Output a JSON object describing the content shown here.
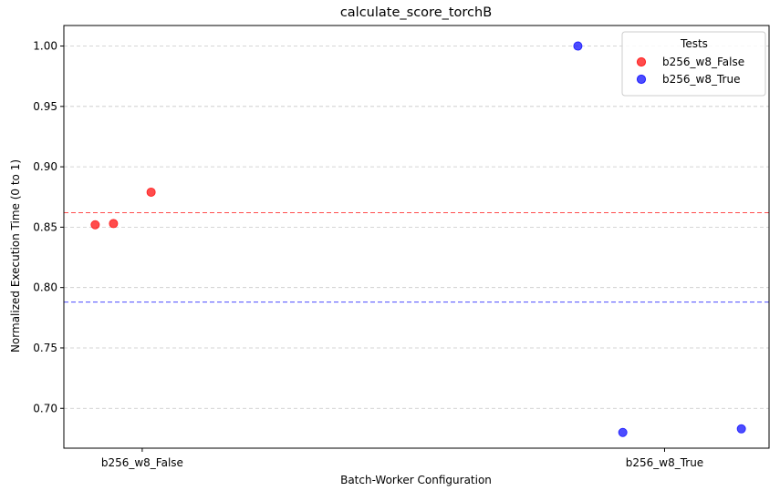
{
  "chart_data": {
    "type": "scatter",
    "title": "calculate_score_torchB",
    "xlabel": "Batch-Worker Configuration",
    "ylabel": "Normalized Execution Time (0 to 1)",
    "categories": [
      "b256_w8_False",
      "b256_w8_True"
    ],
    "xlim": [
      -0.15,
      1.2
    ],
    "ylim": [
      0.667,
      1.017
    ],
    "yticks": [
      0.7,
      0.75,
      0.8,
      0.85,
      0.9,
      0.95,
      1.0
    ],
    "ytick_labels": [
      "0.70",
      "0.75",
      "0.80",
      "0.85",
      "0.90",
      "0.95",
      "1.00"
    ],
    "grid": {
      "axis": "y",
      "style": "dashed"
    },
    "legend": {
      "title": "Tests",
      "placement": "top-right"
    },
    "series": [
      {
        "name": "b256_w8_False",
        "color": "#ff0000",
        "points": [
          {
            "x": -0.09,
            "y": 0.852
          },
          {
            "x": -0.055,
            "y": 0.853
          },
          {
            "x": 0.017,
            "y": 0.879
          }
        ],
        "mean": 0.862
      },
      {
        "name": "b256_w8_True",
        "color": "#0000ff",
        "points": [
          {
            "x": 0.834,
            "y": 1.0
          },
          {
            "x": 0.92,
            "y": 0.68
          },
          {
            "x": 1.147,
            "y": 0.683
          }
        ],
        "mean": 0.788
      }
    ]
  }
}
